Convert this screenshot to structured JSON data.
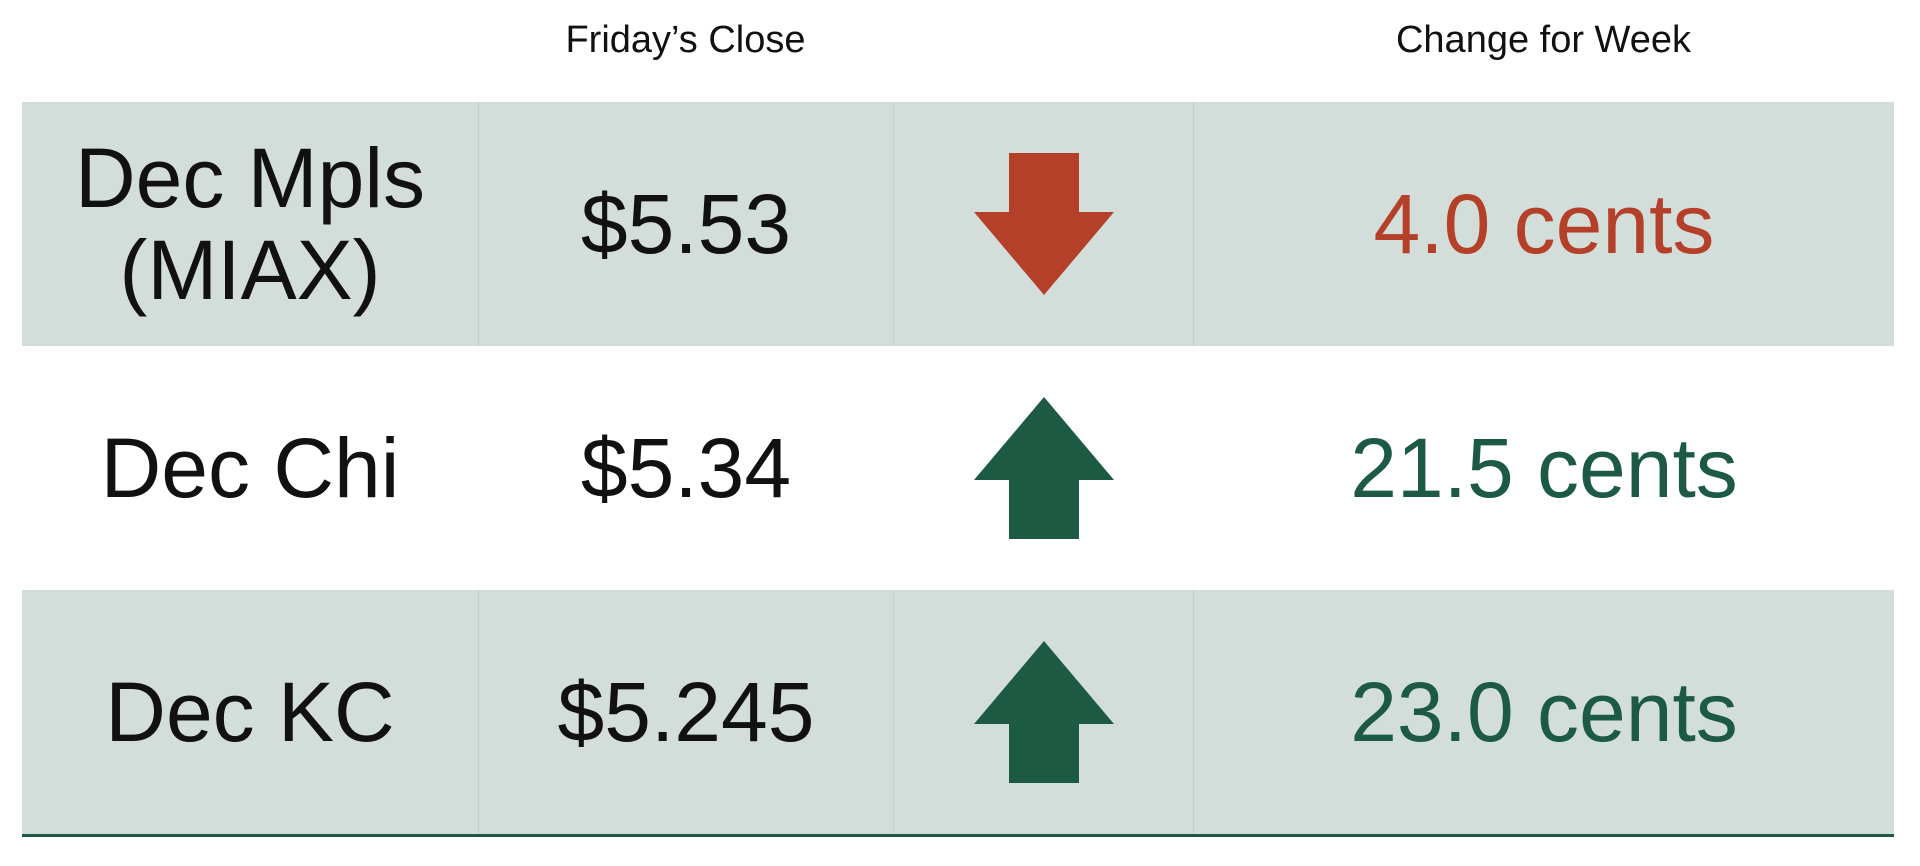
{
  "header": {
    "close": "Friday’s Close",
    "change": "Change for Week"
  },
  "rows": [
    {
      "name": "Dec Mpls (MIAX)",
      "close": "$5.53",
      "direction": "down",
      "change": "4.0 cents",
      "color": "#b5402a",
      "shaded": true
    },
    {
      "name": "Dec Chi",
      "close": "$5.34",
      "direction": "up",
      "change": "21.5 cents",
      "color": "#1c5a43",
      "shaded": false
    },
    {
      "name": "Dec KC",
      "close": "$5.245",
      "direction": "up",
      "change": "23.0 cents",
      "color": "#1c5a43",
      "shaded": true
    }
  ]
}
